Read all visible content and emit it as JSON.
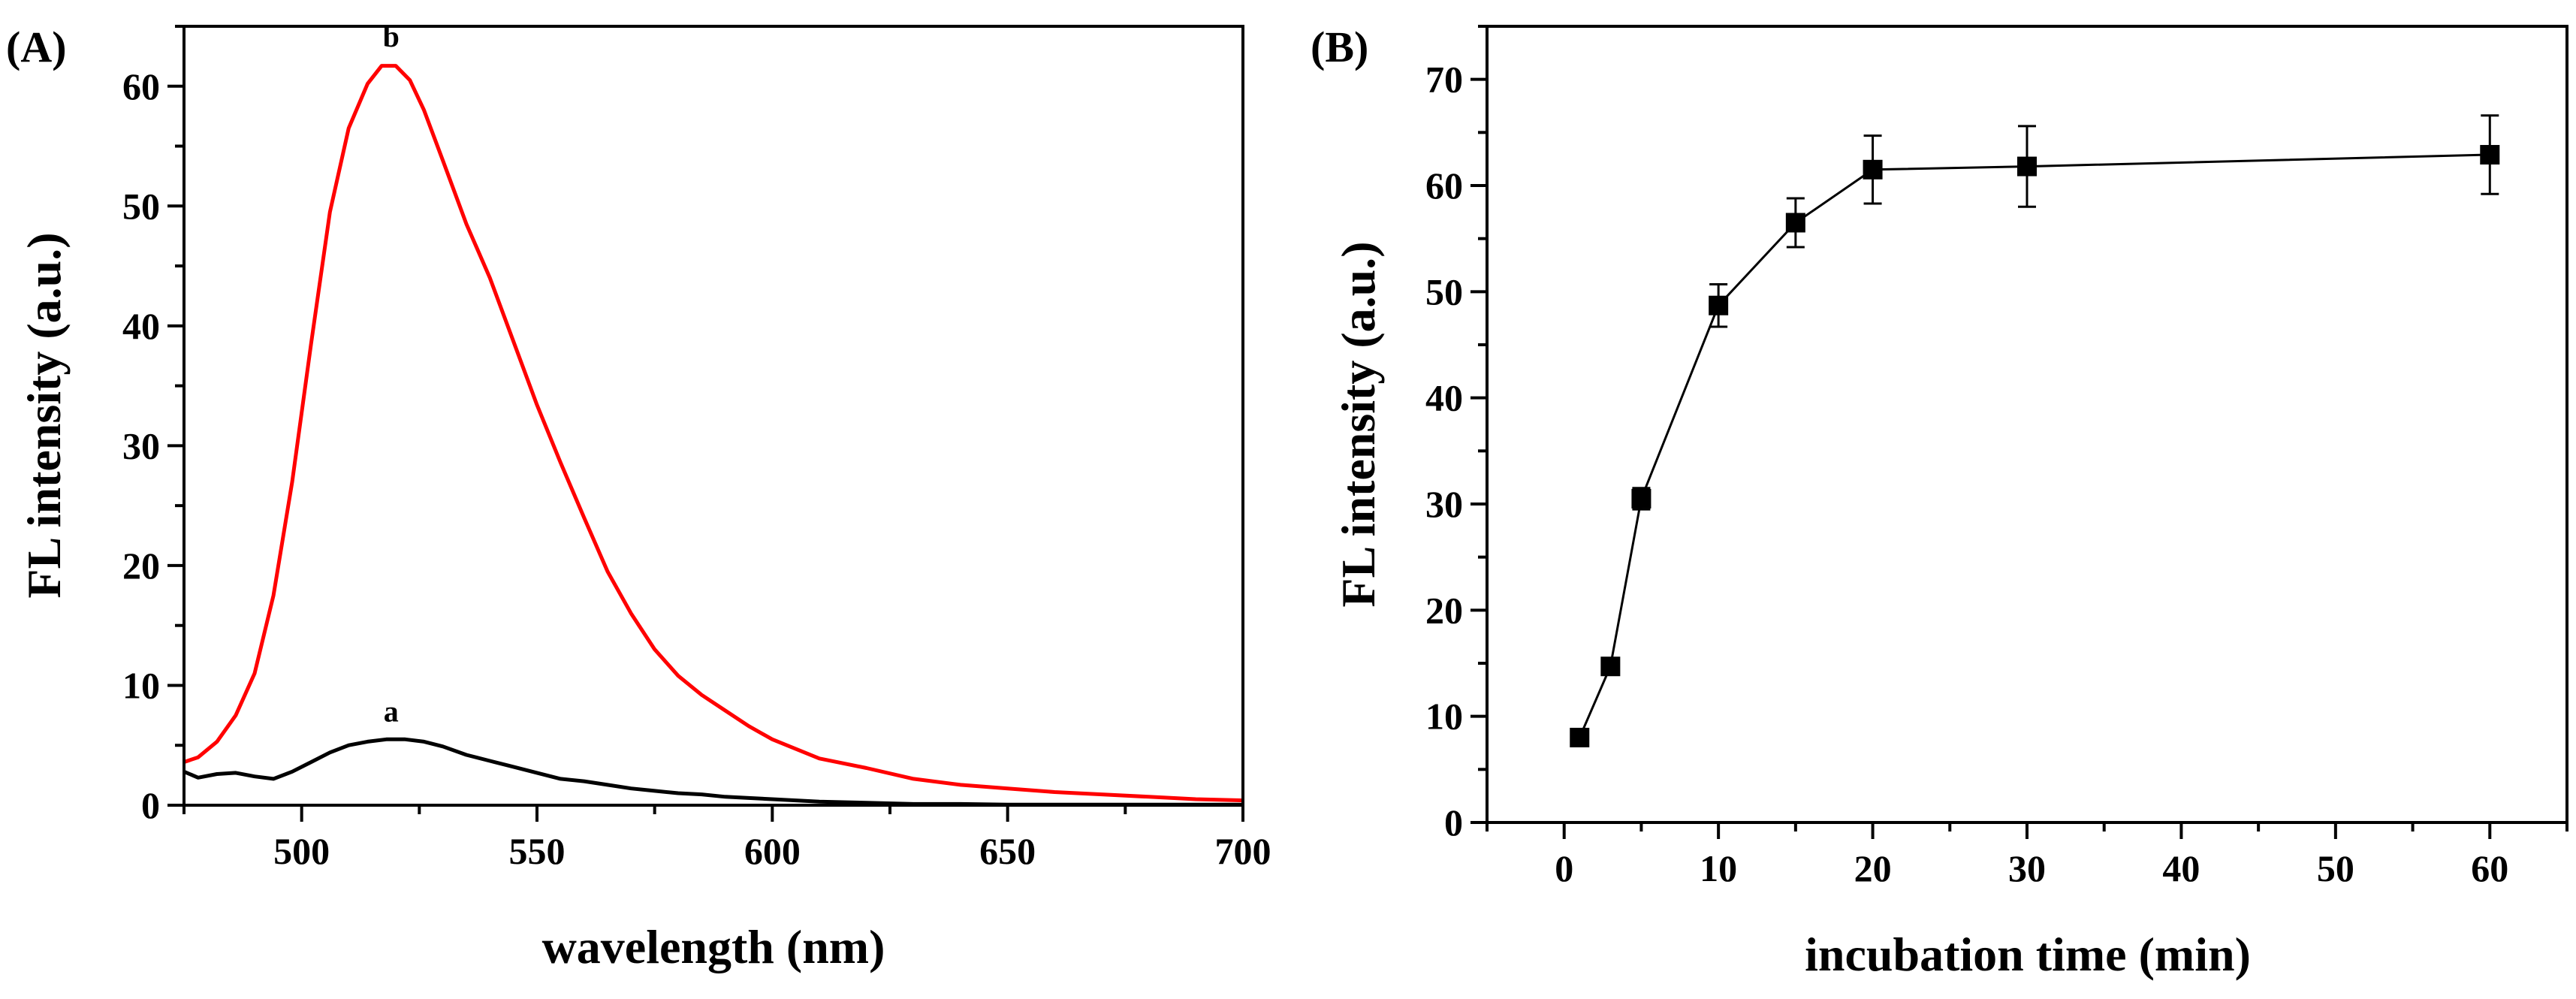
{
  "chart_data": [
    {
      "type": "line",
      "panel_label": "(A)",
      "xlabel": "wavelength (nm)",
      "ylabel": "FL intensity (a.u.)",
      "xlim": [
        475,
        700
      ],
      "ylim": [
        0,
        65
      ],
      "xticks": [
        500,
        550,
        600,
        650,
        700
      ],
      "yticks": [
        0,
        10,
        20,
        30,
        40,
        50,
        60
      ],
      "grid": false,
      "series": [
        {
          "name": "a",
          "color": "#000000",
          "x": [
            475,
            478,
            482,
            486,
            490,
            494,
            498,
            502,
            506,
            510,
            514,
            518,
            522,
            526,
            530,
            535,
            540,
            545,
            550,
            555,
            560,
            565,
            570,
            575,
            580,
            585,
            590,
            595,
            600,
            610,
            620,
            630,
            640,
            650,
            660,
            680,
            700
          ],
          "y": [
            2.8,
            2.3,
            2.6,
            2.7,
            2.4,
            2.2,
            2.8,
            3.6,
            4.4,
            5.0,
            5.3,
            5.5,
            5.5,
            5.3,
            4.9,
            4.2,
            3.7,
            3.2,
            2.7,
            2.2,
            2.0,
            1.7,
            1.4,
            1.2,
            1.0,
            0.9,
            0.7,
            0.6,
            0.5,
            0.3,
            0.2,
            0.1,
            0.1,
            0.05,
            0.05,
            0.05,
            0.05
          ]
        },
        {
          "name": "b",
          "color": "#ff0000",
          "x": [
            475,
            478,
            482,
            486,
            490,
            494,
            498,
            502,
            506,
            510,
            514,
            517,
            520,
            523,
            526,
            530,
            535,
            540,
            545,
            550,
            555,
            560,
            565,
            570,
            575,
            580,
            585,
            590,
            595,
            600,
            610,
            620,
            630,
            640,
            650,
            660,
            670,
            680,
            690,
            700
          ],
          "y": [
            3.6,
            4.0,
            5.3,
            7.5,
            11.0,
            17.5,
            27.0,
            38.5,
            49.5,
            56.5,
            60.2,
            61.7,
            61.7,
            60.5,
            58.0,
            53.8,
            48.5,
            44.0,
            38.7,
            33.4,
            28.6,
            24.0,
            19.5,
            16.0,
            13.0,
            10.8,
            9.2,
            7.9,
            6.6,
            5.5,
            3.9,
            3.1,
            2.2,
            1.7,
            1.4,
            1.1,
            0.9,
            0.7,
            0.5,
            0.4
          ]
        }
      ],
      "annotations": [
        {
          "text": "a",
          "x": 519,
          "y": 7.0
        },
        {
          "text": "b",
          "x": 519,
          "y": 63.3
        }
      ]
    },
    {
      "type": "scatter",
      "panel_label": "(B)",
      "xlabel": "incubation time (min)",
      "ylabel": "FL intensity (a.u.)",
      "xlim": [
        -5,
        65
      ],
      "ylim": [
        0,
        75
      ],
      "xticks": [
        0,
        10,
        20,
        30,
        40,
        50,
        60
      ],
      "yticks": [
        0,
        10,
        20,
        30,
        40,
        50,
        60,
        70
      ],
      "grid": false,
      "connected": true,
      "marker": "square",
      "series": [
        {
          "name": "FL intensity",
          "color": "#000000",
          "x": [
            1,
            3,
            5,
            10,
            15,
            20,
            30,
            60
          ],
          "y": [
            8.0,
            14.7,
            30.5,
            48.7,
            56.5,
            61.5,
            61.8,
            62.9
          ],
          "yerr": [
            0.4,
            0.5,
            1.0,
            2.0,
            2.3,
            3.2,
            3.8,
            3.7
          ]
        }
      ]
    }
  ]
}
